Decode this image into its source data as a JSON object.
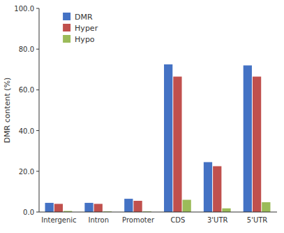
{
  "chart_data": {
    "type": "bar",
    "ylabel": "DMR content (%)",
    "categories": [
      "Intergenic",
      "Intron",
      "Promoter",
      "CDS",
      "3'UTR",
      "5'UTR"
    ],
    "series": [
      {
        "name": "DMR",
        "color": "#4472C4",
        "values": [
          4.5,
          4.5,
          6.5,
          72.5,
          24.5,
          72.0
        ]
      },
      {
        "name": "Hyper",
        "color": "#C0504D",
        "values": [
          4.0,
          4.0,
          5.5,
          66.5,
          22.5,
          66.5
        ]
      },
      {
        "name": "Hypo",
        "color": "#9BBB59",
        "values": [
          0.5,
          0.3,
          0.3,
          6.0,
          1.8,
          4.8
        ]
      }
    ],
    "ylim": [
      0,
      100
    ],
    "yticks": [
      {
        "value": 0,
        "label": "0.0"
      },
      {
        "value": 20,
        "label": "20.0"
      },
      {
        "value": 40,
        "label": "40.0"
      },
      {
        "value": 60,
        "label": "60.0"
      },
      {
        "value": 80,
        "label": "80.0"
      },
      {
        "value": 100,
        "label": "100.0"
      }
    ],
    "grid": false,
    "legend": "upper left"
  }
}
